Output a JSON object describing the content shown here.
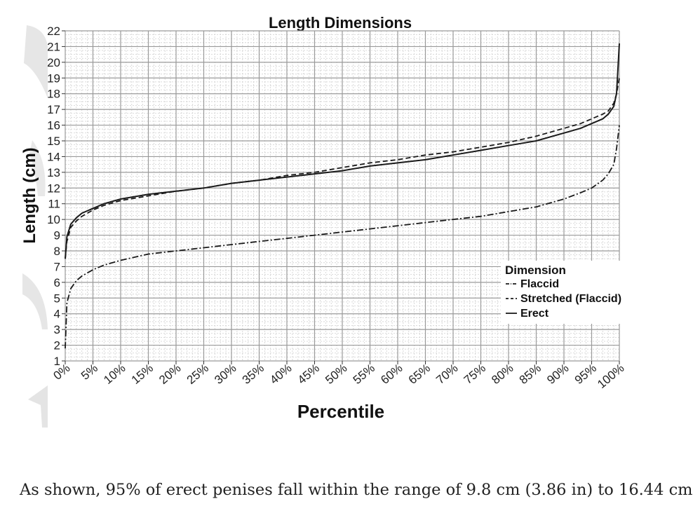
{
  "chart_data": {
    "type": "line",
    "title": "Length Dimensions",
    "xlabel": "Percentile",
    "ylabel": "Length (cm)",
    "xlim": [
      0,
      100
    ],
    "ylim": [
      1,
      22
    ],
    "x_ticks": [
      "0%",
      "5%",
      "10%",
      "15%",
      "20%",
      "25%",
      "30%",
      "35%",
      "40%",
      "45%",
      "50%",
      "55%",
      "60%",
      "65%",
      "70%",
      "75%",
      "80%",
      "85%",
      "90%",
      "95%",
      "100%"
    ],
    "y_ticks": [
      "1",
      "2",
      "3",
      "4",
      "5",
      "6",
      "7",
      "8",
      "9",
      "10",
      "11",
      "12",
      "13",
      "14",
      "15",
      "16",
      "17",
      "18",
      "19",
      "20",
      "21",
      "22"
    ],
    "grid": true,
    "legend": {
      "title": "Dimension",
      "placement": "lower-right",
      "entries": [
        "Flaccid",
        "Stretched (Flaccid)",
        "Erect"
      ]
    },
    "series": [
      {
        "name": "Flaccid",
        "dash": "dash-dot",
        "x": [
          0,
          0.3,
          1,
          2,
          3,
          5,
          7,
          10,
          15,
          20,
          25,
          30,
          35,
          40,
          45,
          50,
          55,
          60,
          65,
          70,
          75,
          80,
          85,
          90,
          93,
          95,
          97,
          98,
          99,
          99.5,
          100
        ],
        "y": [
          1.8,
          4.7,
          5.6,
          6.1,
          6.4,
          6.8,
          7.1,
          7.4,
          7.8,
          8.0,
          8.2,
          8.4,
          8.6,
          8.8,
          9.0,
          9.2,
          9.4,
          9.6,
          9.8,
          10.0,
          10.2,
          10.5,
          10.8,
          11.3,
          11.7,
          12.0,
          12.5,
          12.9,
          13.5,
          14.5,
          16.0
        ]
      },
      {
        "name": "Stretched (Flaccid)",
        "dash": "dashed",
        "x": [
          0,
          0.3,
          1,
          2,
          3,
          5,
          7,
          10,
          15,
          20,
          25,
          30,
          35,
          40,
          45,
          50,
          55,
          60,
          65,
          70,
          75,
          80,
          85,
          90,
          93,
          95,
          97,
          98,
          99,
          99.5,
          100
        ],
        "y": [
          7.5,
          8.6,
          9.5,
          9.9,
          10.2,
          10.6,
          10.9,
          11.2,
          11.5,
          11.8,
          12.0,
          12.3,
          12.5,
          12.8,
          13.0,
          13.3,
          13.6,
          13.8,
          14.1,
          14.3,
          14.6,
          14.9,
          15.3,
          15.8,
          16.1,
          16.4,
          16.7,
          16.9,
          17.4,
          18.0,
          19.0
        ]
      },
      {
        "name": "Erect",
        "dash": "solid",
        "x": [
          0,
          0.3,
          1,
          2,
          3,
          5,
          7,
          10,
          15,
          20,
          25,
          30,
          35,
          40,
          45,
          50,
          55,
          60,
          65,
          70,
          75,
          80,
          85,
          90,
          93,
          95,
          97,
          98,
          99,
          99.5,
          100
        ],
        "y": [
          7.5,
          8.9,
          9.7,
          10.1,
          10.4,
          10.7,
          11.0,
          11.3,
          11.6,
          11.8,
          12.0,
          12.3,
          12.5,
          12.7,
          12.9,
          13.1,
          13.4,
          13.6,
          13.8,
          14.1,
          14.4,
          14.7,
          15.0,
          15.5,
          15.8,
          16.1,
          16.4,
          16.7,
          17.2,
          18.0,
          21.2
        ]
      }
    ]
  },
  "caption": "As shown, 95% of erect penises fall within the range of 9.8 cm (3.86 in) to 16.44 cm"
}
